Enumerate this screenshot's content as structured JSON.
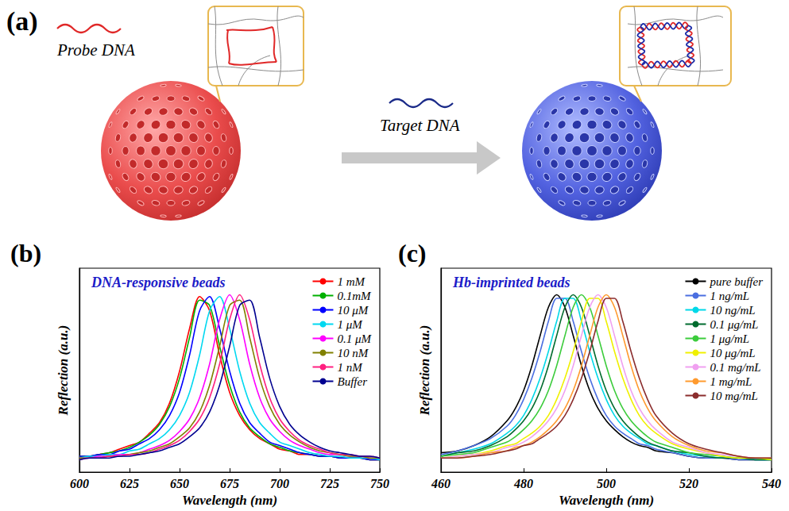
{
  "diagram": {
    "panel": "(a)",
    "probe_label": "Probe DNA",
    "target_label": "Target DNA"
  },
  "chart_data": [
    {
      "panel": "(b)",
      "type": "line",
      "title": "DNA-responsive beads",
      "x_label": "Wavelength (nm)",
      "y_label": "Reflection (a.u.)",
      "xlim": [
        600,
        750
      ],
      "xticks": [
        600,
        625,
        650,
        675,
        700,
        725,
        750
      ],
      "ylim": [
        0,
        1.15
      ],
      "tick_labels": "x",
      "grid": false,
      "legend": "upper right",
      "x": [
        600,
        605,
        610,
        615,
        620,
        625,
        630,
        635,
        640,
        645,
        650,
        655,
        660,
        665,
        670,
        675,
        680,
        685,
        690,
        695,
        700,
        705,
        710,
        715,
        720,
        725,
        730,
        735,
        740,
        745,
        750
      ],
      "series": [
        {
          "name": "1 mM",
          "color": "#ff0000",
          "values": [
            0.09,
            0.09,
            0.1,
            0.11,
            0.13,
            0.15,
            0.17,
            0.22,
            0.28,
            0.39,
            0.57,
            0.81,
            0.99,
            0.91,
            0.66,
            0.45,
            0.32,
            0.24,
            0.19,
            0.16,
            0.13,
            0.12,
            0.1,
            0.1,
            0.09,
            0.09,
            0.08,
            0.08,
            0.08,
            0.07,
            0.07
          ]
        },
        {
          "name": "0.1mM",
          "color": "#00b000",
          "values": [
            0.09,
            0.09,
            0.1,
            0.11,
            0.12,
            0.14,
            0.17,
            0.21,
            0.27,
            0.37,
            0.53,
            0.76,
            0.97,
            0.94,
            0.71,
            0.49,
            0.34,
            0.25,
            0.2,
            0.16,
            0.14,
            0.12,
            0.11,
            0.1,
            0.09,
            0.09,
            0.08,
            0.08,
            0.08,
            0.07,
            0.07
          ]
        },
        {
          "name": "10 μM",
          "color": "#0000ff",
          "values": [
            0.09,
            0.09,
            0.1,
            0.1,
            0.12,
            0.13,
            0.16,
            0.19,
            0.24,
            0.32,
            0.45,
            0.66,
            0.91,
            0.99,
            0.81,
            0.57,
            0.39,
            0.28,
            0.22,
            0.17,
            0.15,
            0.13,
            0.11,
            0.1,
            0.09,
            0.09,
            0.08,
            0.08,
            0.08,
            0.07,
            0.07
          ]
        },
        {
          "name": "1 μM",
          "color": "#00d8f0",
          "values": [
            0.08,
            0.09,
            0.09,
            0.1,
            0.1,
            0.12,
            0.13,
            0.16,
            0.19,
            0.24,
            0.32,
            0.45,
            0.66,
            0.91,
            0.99,
            0.81,
            0.57,
            0.39,
            0.28,
            0.22,
            0.17,
            0.15,
            0.13,
            0.11,
            0.1,
            0.09,
            0.09,
            0.08,
            0.08,
            0.08,
            0.07
          ]
        },
        {
          "name": "0.1 μM",
          "color": "#ff00ff",
          "values": [
            0.08,
            0.08,
            0.09,
            0.09,
            0.1,
            0.1,
            0.11,
            0.13,
            0.15,
            0.18,
            0.23,
            0.3,
            0.42,
            0.61,
            0.86,
            1.0,
            0.86,
            0.61,
            0.42,
            0.3,
            0.23,
            0.18,
            0.15,
            0.13,
            0.11,
            0.1,
            0.1,
            0.09,
            0.09,
            0.08,
            0.08
          ]
        },
        {
          "name": "10 nM",
          "color": "#808000",
          "values": [
            0.08,
            0.08,
            0.08,
            0.09,
            0.09,
            0.1,
            0.11,
            0.12,
            0.14,
            0.16,
            0.2,
            0.25,
            0.34,
            0.49,
            0.71,
            0.94,
            0.97,
            0.76,
            0.53,
            0.37,
            0.27,
            0.21,
            0.17,
            0.14,
            0.12,
            0.11,
            0.1,
            0.09,
            0.09,
            0.08,
            0.08
          ]
        },
        {
          "name": "1 nM",
          "color": "#ff2080",
          "values": [
            0.07,
            0.08,
            0.08,
            0.09,
            0.09,
            0.1,
            0.1,
            0.11,
            0.13,
            0.15,
            0.18,
            0.23,
            0.3,
            0.42,
            0.61,
            0.86,
            1.0,
            0.86,
            0.61,
            0.42,
            0.3,
            0.23,
            0.18,
            0.15,
            0.13,
            0.11,
            0.1,
            0.1,
            0.09,
            0.09,
            0.08
          ]
        },
        {
          "name": "Buffer",
          "color": "#000090",
          "values": [
            0.07,
            0.08,
            0.08,
            0.08,
            0.09,
            0.09,
            0.1,
            0.11,
            0.12,
            0.14,
            0.16,
            0.2,
            0.25,
            0.34,
            0.49,
            0.71,
            0.94,
            0.97,
            0.76,
            0.53,
            0.37,
            0.27,
            0.21,
            0.17,
            0.14,
            0.12,
            0.11,
            0.1,
            0.09,
            0.09,
            0.08
          ]
        }
      ]
    },
    {
      "panel": "(c)",
      "type": "line",
      "title": "Hb-imprinted beads",
      "x_label": "Wavelength (nm)",
      "y_label": "Reflection (a.u.)",
      "xlim": [
        460,
        540
      ],
      "xticks": [
        460,
        480,
        500,
        520,
        540
      ],
      "ylim": [
        0,
        1.15
      ],
      "tick_labels": "x",
      "grid": false,
      "legend": "upper right",
      "x": [
        460,
        464,
        468,
        472,
        476,
        478,
        480,
        482,
        484,
        486,
        488,
        490,
        492,
        494,
        496,
        498,
        500,
        502,
        504,
        506,
        508,
        510,
        512,
        516,
        520,
        524,
        528,
        532,
        536,
        540
      ],
      "series": [
        {
          "name": "pure buffer",
          "color": "#000000",
          "values": [
            0.11,
            0.12,
            0.15,
            0.2,
            0.29,
            0.36,
            0.46,
            0.6,
            0.77,
            0.93,
            1.0,
            0.93,
            0.77,
            0.6,
            0.46,
            0.36,
            0.29,
            0.24,
            0.2,
            0.17,
            0.15,
            0.14,
            0.12,
            0.11,
            0.09,
            0.08,
            0.08,
            0.07,
            0.07,
            0.07
          ]
        },
        {
          "name": "1 ng/mL",
          "color": "#4a6ee0",
          "values": [
            0.1,
            0.12,
            0.15,
            0.19,
            0.26,
            0.32,
            0.41,
            0.53,
            0.68,
            0.85,
            0.98,
            0.98,
            0.85,
            0.68,
            0.53,
            0.41,
            0.32,
            0.26,
            0.22,
            0.19,
            0.16,
            0.15,
            0.13,
            0.11,
            0.09,
            0.08,
            0.08,
            0.07,
            0.07,
            0.07
          ]
        },
        {
          "name": "10 ng/mL",
          "color": "#00d8e8",
          "values": [
            0.09,
            0.11,
            0.13,
            0.16,
            0.22,
            0.26,
            0.32,
            0.41,
            0.53,
            0.68,
            0.85,
            0.98,
            0.98,
            0.85,
            0.68,
            0.53,
            0.41,
            0.32,
            0.26,
            0.22,
            0.19,
            0.16,
            0.15,
            0.12,
            0.1,
            0.09,
            0.08,
            0.08,
            0.07,
            0.07
          ]
        },
        {
          "name": "0.1 μg/mL",
          "color": "#006b2e",
          "values": [
            0.09,
            0.11,
            0.12,
            0.15,
            0.2,
            0.24,
            0.29,
            0.36,
            0.46,
            0.6,
            0.77,
            0.93,
            1.0,
            0.93,
            0.77,
            0.6,
            0.46,
            0.36,
            0.29,
            0.24,
            0.2,
            0.17,
            0.15,
            0.12,
            0.11,
            0.09,
            0.08,
            0.08,
            0.07,
            0.07
          ]
        },
        {
          "name": "1 μg/mL",
          "color": "#3ccc3c",
          "values": [
            0.09,
            0.1,
            0.11,
            0.14,
            0.17,
            0.2,
            0.24,
            0.29,
            0.36,
            0.46,
            0.6,
            0.77,
            0.93,
            1.0,
            0.93,
            0.77,
            0.6,
            0.46,
            0.36,
            0.29,
            0.24,
            0.2,
            0.17,
            0.14,
            0.11,
            0.1,
            0.09,
            0.08,
            0.08,
            0.07
          ]
        },
        {
          "name": "10 μg/mL",
          "color": "#f0f000",
          "values": [
            0.08,
            0.09,
            0.1,
            0.12,
            0.15,
            0.16,
            0.19,
            0.22,
            0.26,
            0.32,
            0.41,
            0.53,
            0.68,
            0.85,
            0.98,
            0.98,
            0.85,
            0.68,
            0.53,
            0.41,
            0.32,
            0.26,
            0.22,
            0.16,
            0.13,
            0.11,
            0.09,
            0.08,
            0.08,
            0.07
          ]
        },
        {
          "name": "0.1 mg/mL",
          "color": "#f0a0f0",
          "values": [
            0.08,
            0.09,
            0.1,
            0.11,
            0.14,
            0.15,
            0.17,
            0.2,
            0.24,
            0.29,
            0.36,
            0.46,
            0.6,
            0.77,
            0.93,
            1.0,
            0.93,
            0.77,
            0.6,
            0.46,
            0.36,
            0.29,
            0.24,
            0.17,
            0.14,
            0.11,
            0.1,
            0.09,
            0.08,
            0.08
          ]
        },
        {
          "name": "1 mg/mL",
          "color": "#ff9a2e",
          "values": [
            0.08,
            0.08,
            0.09,
            0.11,
            0.12,
            0.14,
            0.15,
            0.17,
            0.2,
            0.24,
            0.29,
            0.36,
            0.46,
            0.6,
            0.77,
            0.93,
            1.0,
            0.93,
            0.77,
            0.6,
            0.46,
            0.36,
            0.29,
            0.2,
            0.15,
            0.12,
            0.11,
            0.09,
            0.08,
            0.08
          ]
        },
        {
          "name": "10 mg/mL",
          "color": "#8b2d2d",
          "values": [
            0.08,
            0.08,
            0.09,
            0.1,
            0.12,
            0.13,
            0.15,
            0.16,
            0.19,
            0.22,
            0.26,
            0.32,
            0.41,
            0.53,
            0.68,
            0.85,
            0.98,
            0.98,
            0.85,
            0.68,
            0.53,
            0.41,
            0.32,
            0.22,
            0.16,
            0.13,
            0.11,
            0.09,
            0.08,
            0.08
          ]
        }
      ]
    }
  ]
}
